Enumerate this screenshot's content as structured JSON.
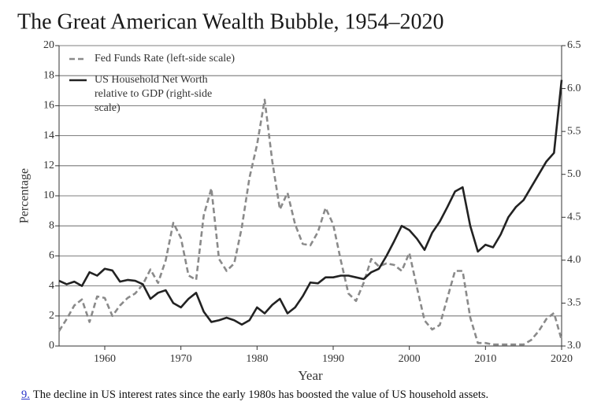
{
  "chart_data": {
    "type": "line",
    "title": "The Great American Wealth Bubble, 1954–2020",
    "ylabel": "Percentage",
    "xlabel": "Year",
    "x": [
      1954,
      1955,
      1956,
      1957,
      1958,
      1959,
      1960,
      1961,
      1962,
      1963,
      1964,
      1965,
      1966,
      1967,
      1968,
      1969,
      1970,
      1971,
      1972,
      1973,
      1974,
      1975,
      1976,
      1977,
      1978,
      1979,
      1980,
      1981,
      1982,
      1983,
      1984,
      1985,
      1986,
      1987,
      1988,
      1989,
      1990,
      1991,
      1992,
      1993,
      1994,
      1995,
      1996,
      1997,
      1998,
      1999,
      2000,
      2001,
      2002,
      2003,
      2004,
      2005,
      2006,
      2007,
      2008,
      2009,
      2010,
      2011,
      2012,
      2013,
      2014,
      2015,
      2016,
      2017,
      2018,
      2019,
      2020
    ],
    "xlim": [
      1954,
      2020
    ],
    "xticks": [
      1960,
      1970,
      1980,
      1990,
      2000,
      2010,
      2020
    ],
    "ylim": [
      0,
      20
    ],
    "yticks": [
      0,
      2,
      4,
      6,
      8,
      10,
      12,
      14,
      16,
      18,
      20
    ],
    "y2lim": [
      3,
      6.5
    ],
    "y2ticks": [
      {
        "value": 3,
        "label": "3.0"
      },
      3.5,
      {
        "value": 4,
        "label": "4.0"
      },
      4.5,
      {
        "value": 5,
        "label": "5.0"
      },
      5.5,
      {
        "value": 6,
        "label": "6.0"
      },
      6.5
    ],
    "grid": true,
    "legend": "upper left",
    "series": [
      {
        "name": "Fed Funds Rate (left-side scale)",
        "color": "#8a8a8a",
        "dashed": true,
        "values": [
          1.0,
          1.8,
          2.7,
          3.1,
          1.6,
          3.3,
          3.2,
          2.0,
          2.7,
          3.2,
          3.5,
          4.1,
          5.1,
          4.2,
          5.7,
          8.2,
          7.2,
          4.7,
          4.4,
          8.7,
          10.5,
          5.8,
          5.0,
          5.5,
          7.9,
          11.2,
          13.4,
          16.4,
          12.3,
          9.1,
          10.2,
          8.1,
          6.8,
          6.7,
          7.6,
          9.2,
          8.1,
          5.7,
          3.5,
          3.0,
          4.2,
          5.8,
          5.3,
          5.5,
          5.4,
          5.0,
          6.2,
          3.9,
          1.7,
          1.1,
          1.4,
          3.2,
          5.0,
          5.0,
          1.9,
          0.2,
          0.2,
          0.1,
          0.1,
          0.1,
          0.1,
          0.1,
          0.4,
          1.0,
          1.8,
          2.2,
          0.4
        ]
      },
      {
        "name": "US Household Net Worth relative to GDP (right-side scale)",
        "color": "#222222",
        "dashed": false,
        "axis": "y2",
        "values": [
          3.76,
          3.72,
          3.75,
          3.7,
          3.86,
          3.82,
          3.9,
          3.88,
          3.75,
          3.77,
          3.76,
          3.72,
          3.55,
          3.62,
          3.65,
          3.5,
          3.45,
          3.55,
          3.62,
          3.4,
          3.28,
          3.3,
          3.33,
          3.3,
          3.25,
          3.3,
          3.45,
          3.38,
          3.48,
          3.55,
          3.38,
          3.45,
          3.58,
          3.74,
          3.73,
          3.8,
          3.8,
          3.82,
          3.82,
          3.8,
          3.78,
          3.86,
          3.9,
          4.05,
          4.22,
          4.4,
          4.35,
          4.25,
          4.12,
          4.32,
          4.45,
          4.62,
          4.8,
          4.85,
          4.4,
          4.1,
          4.18,
          4.15,
          4.3,
          4.5,
          4.62,
          4.7,
          4.85,
          5.0,
          5.15,
          5.25,
          6.1
        ]
      }
    ]
  },
  "caption": {
    "number": "9.",
    "text": "The decline in US interest rates since the early 1980s has boosted the value of US household assets."
  }
}
